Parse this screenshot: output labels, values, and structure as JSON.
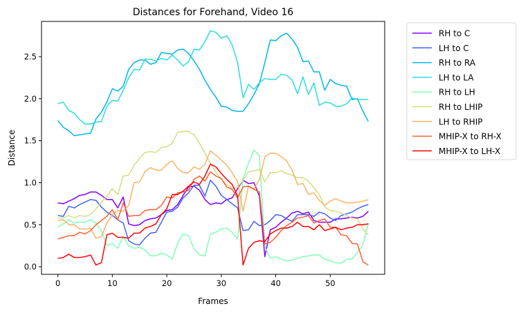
{
  "chart_data": {
    "type": "line",
    "title": "Distances for Forehand, Video 16",
    "xlabel": "Frames",
    "ylabel": "Distance",
    "xlim": [
      -3,
      60
    ],
    "ylim": [
      -0.09,
      2.92
    ],
    "xticks": [
      0,
      10,
      20,
      30,
      40,
      50
    ],
    "yticks": [
      0.0,
      0.5,
      1.0,
      1.5,
      2.0,
      2.5
    ],
    "grid": false,
    "legend_position": "outside-right",
    "series": [
      {
        "name": "RH to C",
        "color": "#8000ff",
        "values": [
          0.76,
          0.75,
          0.78,
          0.81,
          0.85,
          0.86,
          0.89,
          0.89,
          0.85,
          0.8,
          0.8,
          0.7,
          0.83,
          0.51,
          0.49,
          0.5,
          0.55,
          0.57,
          0.58,
          0.62,
          0.67,
          0.68,
          0.74,
          0.85,
          0.95,
          0.96,
          0.91,
          0.8,
          0.74,
          0.76,
          0.75,
          0.8,
          0.82,
          0.93,
          1.03,
          0.99,
          1.0,
          0.84,
          0.12,
          0.44,
          0.47,
          0.53,
          0.58,
          0.64,
          0.66,
          0.63,
          0.65,
          0.55,
          0.53,
          0.53,
          0.53,
          0.57,
          0.57,
          0.58,
          0.59,
          0.58,
          0.6,
          0.66
        ]
      },
      {
        "name": "LH to C",
        "color": "#4062fa",
        "values": [
          0.61,
          0.6,
          0.72,
          0.7,
          0.74,
          0.77,
          0.8,
          0.79,
          0.71,
          0.65,
          0.61,
          0.56,
          0.52,
          0.31,
          0.27,
          0.26,
          0.34,
          0.4,
          0.41,
          0.53,
          0.65,
          0.66,
          0.71,
          0.82,
          0.88,
          0.97,
          0.97,
          0.84,
          1.03,
          0.96,
          0.85,
          0.8,
          0.75,
          0.7,
          0.43,
          0.44,
          0.54,
          0.49,
          0.5,
          0.55,
          0.62,
          0.61,
          0.57,
          0.54,
          0.62,
          0.62,
          0.62,
          0.6,
          0.65,
          0.63,
          0.58,
          0.55,
          0.61,
          0.63,
          0.65,
          0.69,
          0.72,
          0.74
        ]
      },
      {
        "name": "RH to RA",
        "color": "#00b5eb",
        "values": [
          1.74,
          1.66,
          1.62,
          1.56,
          1.57,
          1.58,
          1.59,
          1.76,
          1.84,
          1.96,
          2.12,
          2.09,
          2.15,
          2.35,
          2.43,
          2.46,
          2.46,
          2.41,
          2.43,
          2.55,
          2.54,
          2.53,
          2.58,
          2.59,
          2.54,
          2.45,
          2.35,
          2.22,
          2.11,
          2.02,
          1.91,
          1.9,
          1.86,
          1.85,
          1.85,
          1.94,
          2.05,
          2.18,
          2.43,
          2.7,
          2.69,
          2.75,
          2.78,
          2.71,
          2.61,
          2.44,
          2.45,
          2.32,
          2.32,
          2.1,
          2.23,
          2.18,
          2.16,
          2.15,
          1.99,
          2.0,
          1.85,
          1.73
        ]
      },
      {
        "name": "LH to LA",
        "color": "#2adddd",
        "values": [
          1.94,
          1.96,
          1.86,
          1.83,
          1.75,
          1.7,
          1.7,
          1.72,
          1.73,
          1.91,
          1.98,
          1.97,
          2.1,
          2.25,
          2.35,
          2.34,
          2.47,
          2.47,
          2.45,
          2.48,
          2.46,
          2.52,
          2.46,
          2.39,
          2.44,
          2.59,
          2.58,
          2.68,
          2.81,
          2.79,
          2.72,
          2.75,
          2.64,
          2.43,
          2.01,
          2.17,
          2.11,
          2.19,
          2.24,
          2.23,
          2.23,
          2.29,
          2.28,
          2.22,
          2.06,
          2.26,
          2.05,
          2.19,
          1.92,
          1.96,
          1.95,
          1.91,
          1.91,
          1.94,
          2.01,
          1.99,
          1.99,
          1.99
        ]
      },
      {
        "name": "RH to LH",
        "color": "#80ffb4",
        "values": [
          0.47,
          0.51,
          0.56,
          0.52,
          0.53,
          0.53,
          0.56,
          0.52,
          0.43,
          0.25,
          0.28,
          0.22,
          0.36,
          0.25,
          0.22,
          0.23,
          0.2,
          0.13,
          0.13,
          0.16,
          0.14,
          0.09,
          0.28,
          0.39,
          0.37,
          0.21,
          0.14,
          0.13,
          0.39,
          0.41,
          0.45,
          0.46,
          0.41,
          0.33,
          1.05,
          1.23,
          1.39,
          1.32,
          0.24,
          0.1,
          0.12,
          0.09,
          0.07,
          0.08,
          0.1,
          0.12,
          0.13,
          0.14,
          0.14,
          0.09,
          0.07,
          0.05,
          0.04,
          0.09,
          0.09,
          0.17,
          0.26,
          0.52
        ]
      },
      {
        "name": "RH to LHIP",
        "color": "#d4dd80",
        "values": [
          0.58,
          0.58,
          0.61,
          0.58,
          0.61,
          0.6,
          0.62,
          0.69,
          0.77,
          0.84,
          0.93,
          0.86,
          1.08,
          1.09,
          1.21,
          1.29,
          1.36,
          1.37,
          1.36,
          1.42,
          1.43,
          1.47,
          1.6,
          1.61,
          1.61,
          1.57,
          1.47,
          1.35,
          1.23,
          1.13,
          1.04,
          0.98,
          0.93,
          0.95,
          1.03,
          1.13,
          1.14,
          1.16,
          1.01,
          1.12,
          1.12,
          1.14,
          1.11,
          1.09,
          1.06,
          1.06,
          1.02,
          0.94,
          0.86,
          0.71,
          0.67,
          0.66,
          0.64,
          0.61,
          0.58,
          0.57,
          0.45,
          0.38
        ]
      },
      {
        "name": "LH to RHIP",
        "color": "#ffb360",
        "values": [
          0.55,
          0.56,
          0.5,
          0.5,
          0.45,
          0.45,
          0.46,
          0.34,
          0.36,
          0.52,
          0.62,
          0.67,
          0.66,
          0.73,
          1.0,
          1.01,
          1.13,
          1.18,
          1.15,
          1.15,
          1.22,
          1.26,
          1.17,
          1.12,
          1.12,
          1.19,
          1.16,
          1.22,
          1.38,
          1.33,
          1.27,
          1.21,
          1.12,
          1.01,
          0.66,
          0.96,
          0.93,
          1.04,
          1.31,
          1.35,
          1.35,
          1.31,
          1.26,
          1.15,
          0.98,
          0.99,
          0.86,
          0.88,
          0.79,
          0.73,
          0.78,
          0.81,
          0.78,
          0.76,
          0.76,
          0.77,
          0.78,
          0.8
        ]
      },
      {
        "name": "MHIP-X to RH-X",
        "color": "#ff6030",
        "values": [
          0.33,
          0.35,
          0.37,
          0.37,
          0.41,
          0.39,
          0.43,
          0.5,
          0.55,
          0.6,
          0.68,
          0.56,
          0.76,
          0.6,
          0.61,
          0.61,
          0.67,
          0.68,
          0.68,
          0.73,
          0.83,
          0.82,
          0.88,
          0.89,
          0.91,
          1.04,
          1.08,
          1.02,
          1.13,
          1.08,
          1.05,
          0.95,
          0.92,
          0.82,
          0.95,
          0.96,
          0.92,
          0.89,
          0.27,
          0.29,
          0.35,
          0.43,
          0.49,
          0.53,
          0.58,
          0.59,
          0.61,
          0.52,
          0.55,
          0.57,
          0.47,
          0.47,
          0.38,
          0.37,
          0.28,
          0.27,
          0.06,
          0.02
        ]
      },
      {
        "name": "MHIP-X to LH-X",
        "color": "#ff0000",
        "values": [
          0.1,
          0.11,
          0.15,
          0.11,
          0.11,
          0.12,
          0.14,
          0.02,
          0.05,
          0.38,
          0.4,
          0.35,
          0.35,
          0.34,
          0.4,
          0.4,
          0.46,
          0.48,
          0.51,
          0.62,
          0.69,
          0.86,
          0.86,
          0.9,
          0.96,
          1.01,
          0.98,
          1.08,
          1.22,
          1.19,
          1.11,
          1.04,
          0.98,
          0.84,
          0.02,
          0.22,
          0.29,
          0.31,
          0.3,
          0.39,
          0.43,
          0.46,
          0.46,
          0.48,
          0.53,
          0.48,
          0.48,
          0.44,
          0.5,
          0.43,
          0.45,
          0.47,
          0.44,
          0.46,
          0.47,
          0.5,
          0.5,
          0.51
        ]
      }
    ]
  }
}
